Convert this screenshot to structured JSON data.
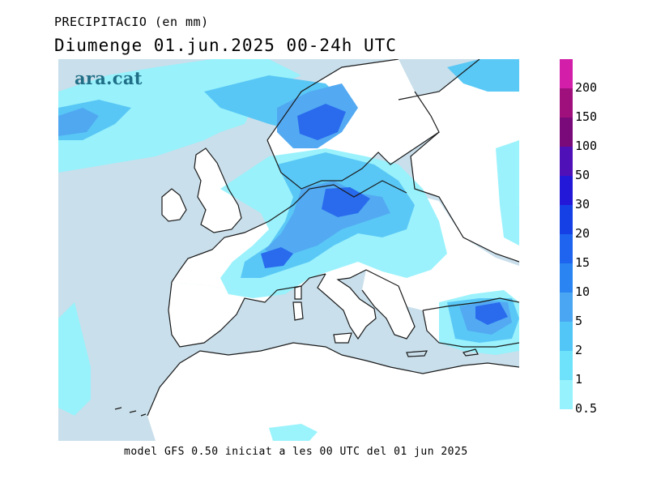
{
  "header": {
    "line1": "PRECIPITACIO (en mm)",
    "line2": "Diumenge  01.jun.2025  00-24h  UTC"
  },
  "logo": {
    "text": "ara.cat"
  },
  "footer": {
    "text": "model GFS 0.50 iniciat a les 00 UTC del 01 jun 2025"
  },
  "map": {
    "sea_color": "#c9dfeb",
    "land_color": "#ffffff",
    "coast_color": "#1a1a1a"
  },
  "legend": {
    "levels": [
      {
        "label": "200",
        "color": "#d21ea9"
      },
      {
        "label": "150",
        "color": "#a0107c"
      },
      {
        "label": "100",
        "color": "#7a0a7a"
      },
      {
        "label": "50",
        "color": "#5010b8"
      },
      {
        "label": "30",
        "color": "#2418d8"
      },
      {
        "label": "20",
        "color": "#1440e6"
      },
      {
        "label": "15",
        "color": "#1f64ee"
      },
      {
        "label": "10",
        "color": "#2a85f2"
      },
      {
        "label": "5",
        "color": "#4aa6f2"
      },
      {
        "label": "2",
        "color": "#52c6f6"
      },
      {
        "label": "1",
        "color": "#6ee2fa"
      },
      {
        "label": "0.5",
        "color": "#96f2fc"
      }
    ]
  }
}
